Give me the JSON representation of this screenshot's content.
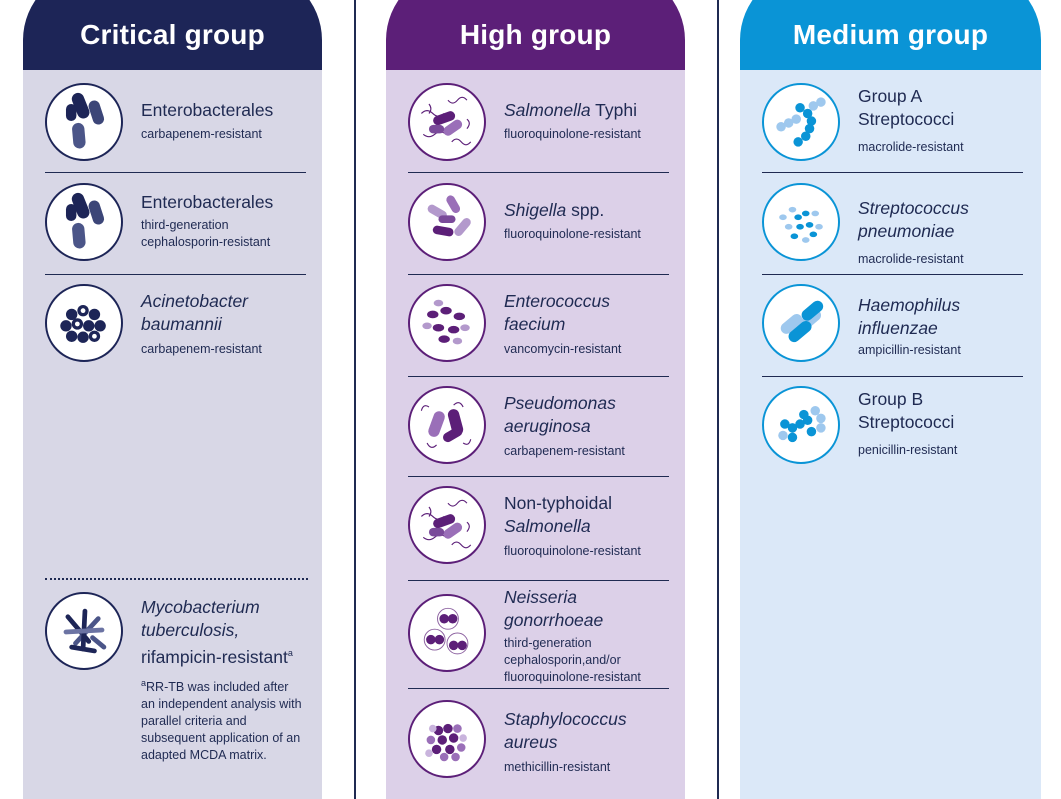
{
  "columns": [
    {
      "title": "Critical group",
      "entries": [
        {
          "name_plain": "Enterobacterales",
          "desc": "carbapenem-resistant"
        },
        {
          "name_plain": "Enterobacterales",
          "desc": "third-generation cephalosporin-resistant"
        },
        {
          "name_italic": "Acinetobacter baumannii",
          "desc": "carbapenem-resistant"
        },
        {
          "name_italic": "Mycobacterium tuberculosis,",
          "name_plain": "rifampicin-resistant",
          "name_sup": "a",
          "footnote_marker": "a",
          "footnote": "RR-TB was included after an independent analysis with parallel criteria and subsequent application of an adapted MCDA matrix."
        }
      ]
    },
    {
      "title": "High group",
      "entries": [
        {
          "name_italic": "Salmonella",
          "name_plain": "Typhi",
          "desc": "fluoroquinolone-resistant"
        },
        {
          "name_italic": "Shigella",
          "name_plain": "spp.",
          "desc": "fluoroquinolone-resistant"
        },
        {
          "name_italic": "Enterococcus faecium",
          "desc": "vancomycin-resistant"
        },
        {
          "name_italic": "Pseudomonas aeruginosa",
          "desc": "carbapenem-resistant"
        },
        {
          "name_plain": "Non-typhoidal",
          "name_italic": "Salmonella",
          "desc": "fluoroquinolone-resistant"
        },
        {
          "name_italic": "Neisseria gonorrhoeae",
          "desc": "third-generation cephalosporin,and/or fluoroquinolone-resistant"
        },
        {
          "name_italic": "Staphylococcus aureus",
          "desc": "methicillin-resistant"
        }
      ]
    },
    {
      "title": "Medium group",
      "entries": [
        {
          "name_plain": "Group A Streptococci",
          "desc": "macrolide-resistant"
        },
        {
          "name_italic": "Streptococcus pneumoniae",
          "desc": "macrolide-resistant"
        },
        {
          "name_italic": "Haemophilus influenzae",
          "desc": "ampicillin-resistant"
        },
        {
          "name_plain": "Group B Streptococci",
          "desc": "penicillin-resistant"
        }
      ]
    }
  ],
  "colors": {
    "critical_header": "#1d2557",
    "critical_bg": "#d8d7e6",
    "high_header": "#5c1f78",
    "high_bg": "#dcd0e8",
    "medium_header": "#0a94d6",
    "medium_bg": "#dbe8f8",
    "text": "#1f2a52"
  },
  "icons": [
    "rod-bacteria-icon",
    "rod-bacteria-icon",
    "coccobacilli-cluster-icon",
    "mycobacteria-icon",
    "salmonella-flagella-icon",
    "shigella-rods-icon",
    "enterococcus-icon",
    "pseudomonas-icon",
    "salmonella-flagella-icon",
    "diplococci-icon",
    "staphylococcus-cluster-icon",
    "streptococcus-chain-icon",
    "pneumococcus-icon",
    "haemophilus-icon",
    "streptococcus-chain-icon"
  ]
}
